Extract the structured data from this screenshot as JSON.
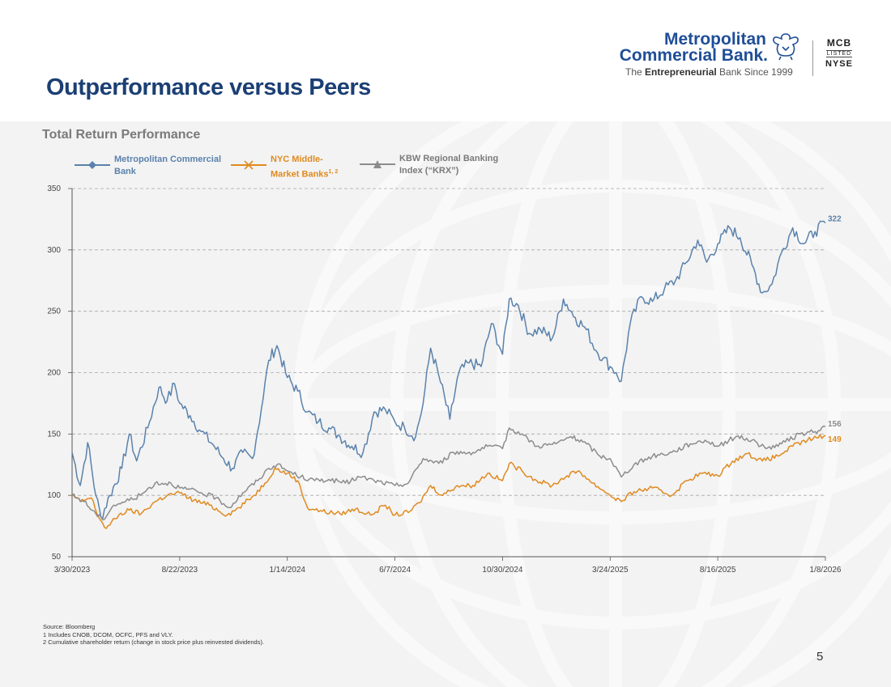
{
  "page": {
    "title": "Outperformance versus Peers",
    "page_number": "5"
  },
  "logo": {
    "name_line1": "Metropolitan",
    "name_line2": "Commercial Bank.",
    "tagline_prefix": "The ",
    "tagline_bold": "Entrepreneurial",
    "tagline_suffix": " Bank Since 1999",
    "ticker_top": "MCB",
    "ticker_mid": "LISTED",
    "ticker_bottom": "NYSE"
  },
  "colors": {
    "title": "#1b3f74",
    "mcb": "#5a82ac",
    "nyc": "#e08a1f",
    "krx": "#8c8c8c"
  },
  "footnotes": {
    "source": "Source: Bloomberg",
    "note1": "1 Includes CNOB, DCOM, OCFC, PFS and VLY.",
    "note2": "2 Cumulative shareholder return (change in stock price plus reinvested dividends)."
  },
  "chart_data": {
    "type": "line",
    "title": "Total Return Performance",
    "ylim": [
      50,
      350
    ],
    "yticks": [
      50,
      100,
      150,
      200,
      250,
      300,
      350
    ],
    "xlim": [
      "3/30/2023",
      "1/8/2026"
    ],
    "xticks": [
      "3/30/2023",
      "8/22/2023",
      "1/14/2024",
      "6/7/2024",
      "10/30/2024",
      "3/24/2025",
      "8/16/2025",
      "1/8/2026"
    ],
    "grid": "horizontal dashed",
    "legend_position": "top-left",
    "series": [
      {
        "name": "Metropolitan Commercial Bank",
        "color": "#5a82ac",
        "marker": "diamond",
        "end_label": "322",
        "points": [
          [
            "3/30/2023",
            135
          ],
          [
            "4/10/2023",
            108
          ],
          [
            "4/20/2023",
            143
          ],
          [
            "5/1/2023",
            100
          ],
          [
            "5/8/2023",
            82
          ],
          [
            "5/20/2023",
            100
          ],
          [
            "6/5/2023",
            122
          ],
          [
            "6/15/2023",
            150
          ],
          [
            "6/25/2023",
            128
          ],
          [
            "7/10/2023",
            155
          ],
          [
            "7/25/2023",
            188
          ],
          [
            "8/5/2023",
            177
          ],
          [
            "8/15/2023",
            191
          ],
          [
            "8/22/2023",
            175
          ],
          [
            "9/5/2023",
            165
          ],
          [
            "9/20/2023",
            152
          ],
          [
            "10/5/2023",
            142
          ],
          [
            "10/20/2023",
            130
          ],
          [
            "11/1/2023",
            122
          ],
          [
            "11/15/2023",
            135
          ],
          [
            "11/28/2023",
            130
          ],
          [
            "12/10/2023",
            170
          ],
          [
            "12/20/2023",
            210
          ],
          [
            "12/31/2023",
            222
          ],
          [
            "1/14/2024",
            196
          ],
          [
            "1/28/2024",
            185
          ],
          [
            "2/10/2024",
            168
          ],
          [
            "2/25/2024",
            160
          ],
          [
            "3/10/2024",
            155
          ],
          [
            "3/25/2024",
            148
          ],
          [
            "4/10/2024",
            140
          ],
          [
            "4/25/2024",
            135
          ],
          [
            "5/10/2024",
            168
          ],
          [
            "5/25/2024",
            170
          ],
          [
            "6/7/2024",
            160
          ],
          [
            "6/20/2024",
            155
          ],
          [
            "7/5/2024",
            148
          ],
          [
            "7/15/2024",
            175
          ],
          [
            "7/25/2024",
            220
          ],
          [
            "8/5/2024",
            198
          ],
          [
            "8/20/2024",
            162
          ],
          [
            "9/1/2024",
            200
          ],
          [
            "9/15/2024",
            208
          ],
          [
            "10/1/2024",
            205
          ],
          [
            "10/15/2024",
            240
          ],
          [
            "10/30/2024",
            215
          ],
          [
            "11/8/2024",
            260
          ],
          [
            "11/20/2024",
            255
          ],
          [
            "12/5/2024",
            232
          ],
          [
            "12/20/2024",
            235
          ],
          [
            "1/5/2025",
            228
          ],
          [
            "1/20/2025",
            260
          ],
          [
            "2/5/2025",
            245
          ],
          [
            "2/20/2025",
            235
          ],
          [
            "3/5/2025",
            218
          ],
          [
            "3/15/2025",
            212
          ],
          [
            "3/24/2025",
            205
          ],
          [
            "4/1/2025",
            200
          ],
          [
            "4/8/2025",
            193
          ],
          [
            "4/20/2025",
            240
          ],
          [
            "5/5/2025",
            262
          ],
          [
            "5/20/2025",
            258
          ],
          [
            "6/5/2025",
            268
          ],
          [
            "6/20/2025",
            275
          ],
          [
            "7/5/2025",
            290
          ],
          [
            "7/20/2025",
            308
          ],
          [
            "8/1/2025",
            290
          ],
          [
            "8/16/2025",
            305
          ],
          [
            "9/1/2025",
            318
          ],
          [
            "9/15/2025",
            310
          ],
          [
            "10/1/2025",
            288
          ],
          [
            "10/15/2025",
            265
          ],
          [
            "10/28/2025",
            272
          ],
          [
            "11/10/2025",
            298
          ],
          [
            "11/25/2025",
            318
          ],
          [
            "12/10/2025",
            305
          ],
          [
            "12/25/2025",
            315
          ],
          [
            "1/8/2026",
            322
          ]
        ]
      },
      {
        "name": "NYC Middle-Market Banks",
        "name_superscript": "1, 2",
        "color": "#e08a1f",
        "marker": "x",
        "end_label": "149",
        "points": [
          [
            "3/30/2023",
            100
          ],
          [
            "4/10/2023",
            95
          ],
          [
            "4/25/2023",
            98
          ],
          [
            "5/5/2023",
            82
          ],
          [
            "5/15/2023",
            73
          ],
          [
            "6/1/2023",
            84
          ],
          [
            "6/15/2023",
            88
          ],
          [
            "7/1/2023",
            85
          ],
          [
            "7/20/2023",
            95
          ],
          [
            "8/5/2023",
            100
          ],
          [
            "8/22/2023",
            102
          ],
          [
            "9/10/2023",
            96
          ],
          [
            "10/1/2023",
            92
          ],
          [
            "10/25/2023",
            84
          ],
          [
            "11/10/2023",
            90
          ],
          [
            "11/30/2023",
            100
          ],
          [
            "12/15/2023",
            110
          ],
          [
            "12/28/2023",
            122
          ],
          [
            "1/14/2024",
            118
          ],
          [
            "1/28/2024",
            112
          ],
          [
            "2/10/2024",
            90
          ],
          [
            "3/1/2024",
            87
          ],
          [
            "3/25/2024",
            85
          ],
          [
            "4/15/2024",
            89
          ],
          [
            "5/5/2024",
            84
          ],
          [
            "5/25/2024",
            92
          ],
          [
            "6/7/2024",
            84
          ],
          [
            "6/25/2024",
            86
          ],
          [
            "7/10/2024",
            94
          ],
          [
            "7/25/2024",
            108
          ],
          [
            "8/10/2024",
            100
          ],
          [
            "8/30/2024",
            108
          ],
          [
            "9/20/2024",
            108
          ],
          [
            "10/10/2024",
            118
          ],
          [
            "10/30/2024",
            112
          ],
          [
            "11/8/2024",
            126
          ],
          [
            "11/25/2024",
            120
          ],
          [
            "12/15/2024",
            112
          ],
          [
            "1/5/2025",
            108
          ],
          [
            "1/25/2025",
            116
          ],
          [
            "2/10/2025",
            120
          ],
          [
            "2/28/2025",
            110
          ],
          [
            "3/15/2025",
            104
          ],
          [
            "3/24/2025",
            100
          ],
          [
            "4/8/2025",
            95
          ],
          [
            "4/25/2025",
            103
          ],
          [
            "5/20/2025",
            106
          ],
          [
            "6/15/2025",
            100
          ],
          [
            "7/5/2025",
            112
          ],
          [
            "7/25/2025",
            118
          ],
          [
            "8/16/2025",
            116
          ],
          [
            "9/5/2025",
            128
          ],
          [
            "9/25/2025",
            134
          ],
          [
            "10/15/2025",
            128
          ],
          [
            "11/5/2025",
            132
          ],
          [
            "11/25/2025",
            140
          ],
          [
            "12/15/2025",
            145
          ],
          [
            "1/8/2026",
            149
          ]
        ]
      },
      {
        "name": "KBW Regional Banking Index (“KRX”)",
        "color": "#8c8c8c",
        "marker": "triangle",
        "end_label": "156",
        "points": [
          [
            "3/30/2023",
            100
          ],
          [
            "4/15/2023",
            95
          ],
          [
            "5/1/2023",
            85
          ],
          [
            "5/10/2023",
            80
          ],
          [
            "5/25/2023",
            92
          ],
          [
            "6/10/2023",
            95
          ],
          [
            "6/30/2023",
            100
          ],
          [
            "7/20/2023",
            110
          ],
          [
            "8/10/2023",
            110
          ],
          [
            "8/22/2023",
            106
          ],
          [
            "9/15/2023",
            103
          ],
          [
            "10/10/2023",
            98
          ],
          [
            "10/28/2023",
            90
          ],
          [
            "11/15/2023",
            102
          ],
          [
            "12/5/2023",
            112
          ],
          [
            "12/20/2023",
            122
          ],
          [
            "12/31/2023",
            125
          ],
          [
            "1/14/2024",
            120
          ],
          [
            "2/1/2024",
            115
          ],
          [
            "2/20/2024",
            112
          ],
          [
            "3/10/2024",
            113
          ],
          [
            "4/1/2024",
            110
          ],
          [
            "4/20/2024",
            115
          ],
          [
            "5/10/2024",
            112
          ],
          [
            "6/7/2024",
            108
          ],
          [
            "6/25/2024",
            110
          ],
          [
            "7/15/2024",
            130
          ],
          [
            "8/5/2024",
            126
          ],
          [
            "8/25/2024",
            135
          ],
          [
            "9/20/2024",
            135
          ],
          [
            "10/10/2024",
            140
          ],
          [
            "10/30/2024",
            138
          ],
          [
            "11/8/2024",
            155
          ],
          [
            "11/25/2024",
            150
          ],
          [
            "12/15/2024",
            140
          ],
          [
            "1/10/2025",
            142
          ],
          [
            "1/30/2025",
            148
          ],
          [
            "2/20/2025",
            142
          ],
          [
            "3/10/2025",
            132
          ],
          [
            "3/24/2025",
            130
          ],
          [
            "4/8/2025",
            115
          ],
          [
            "4/25/2025",
            125
          ],
          [
            "5/20/2025",
            132
          ],
          [
            "6/15/2025",
            135
          ],
          [
            "7/10/2025",
            142
          ],
          [
            "7/30/2025",
            145
          ],
          [
            "8/16/2025",
            140
          ],
          [
            "9/10/2025",
            148
          ],
          [
            "10/1/2025",
            145
          ],
          [
            "10/20/2025",
            138
          ],
          [
            "11/10/2025",
            142
          ],
          [
            "12/5/2025",
            150
          ],
          [
            "12/25/2025",
            152
          ],
          [
            "1/8/2026",
            156
          ]
        ]
      }
    ]
  }
}
